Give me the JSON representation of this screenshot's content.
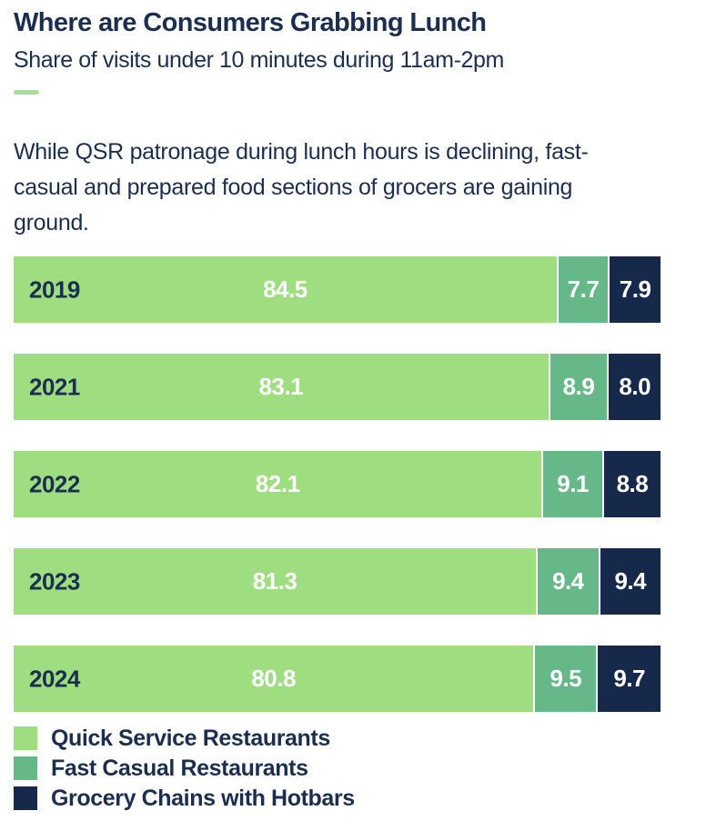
{
  "page": {
    "title": "Where are Consumers Grabbing Lunch",
    "subtitle": "Share of visits under 10 minutes during 11am-2pm",
    "description": "While QSR patronage during lunch hours is declining, fast-casual and prepared food sections of grocers are gaining ground."
  },
  "colors": {
    "quick_service_green": "#9EDE81",
    "fast_casual_green": "#66B888",
    "grocery_navy": "#16294A",
    "text_navy": "#1C2E4F",
    "accent_dash_green": "#A8E08A",
    "value_text": "#FFFFFF"
  },
  "chart_data": {
    "type": "bar",
    "orientation": "horizontal",
    "stacked": true,
    "title": "Where are Consumers Grabbing Lunch",
    "subtitle": "Share of visits under 10 minutes during 11am-2pm",
    "categories": [
      "2019",
      "2021",
      "2022",
      "2023",
      "2024"
    ],
    "series": [
      {
        "name": "Quick Service Restaurants",
        "color": "#9EDE81",
        "values": [
          84.5,
          83.1,
          82.1,
          81.3,
          80.8
        ],
        "labels": [
          "84.5",
          "83.1",
          "82.1",
          "81.3",
          "80.8"
        ]
      },
      {
        "name": "Fast Casual Restaurants",
        "color": "#66B888",
        "values": [
          7.7,
          8.9,
          9.1,
          9.4,
          9.5
        ],
        "labels": [
          "7.7",
          "8.9",
          "9.1",
          "9.4",
          "9.5"
        ]
      },
      {
        "name": "Grocery Chains with Hotbars",
        "color": "#16294A",
        "values": [
          7.9,
          8.0,
          8.8,
          9.4,
          9.7
        ],
        "labels": [
          "7.9",
          "8.0",
          "8.8",
          "9.4",
          "9.7"
        ]
      }
    ],
    "xlim": [
      0,
      100
    ],
    "grid": false,
    "legend_position": "bottom"
  },
  "legend": {
    "items": [
      {
        "label": "Quick Service Restaurants",
        "color": "#9EDE81"
      },
      {
        "label": "Fast Casual Restaurants",
        "color": "#66B888"
      },
      {
        "label": "Grocery Chains with Hotbars",
        "color": "#16294A"
      }
    ]
  }
}
